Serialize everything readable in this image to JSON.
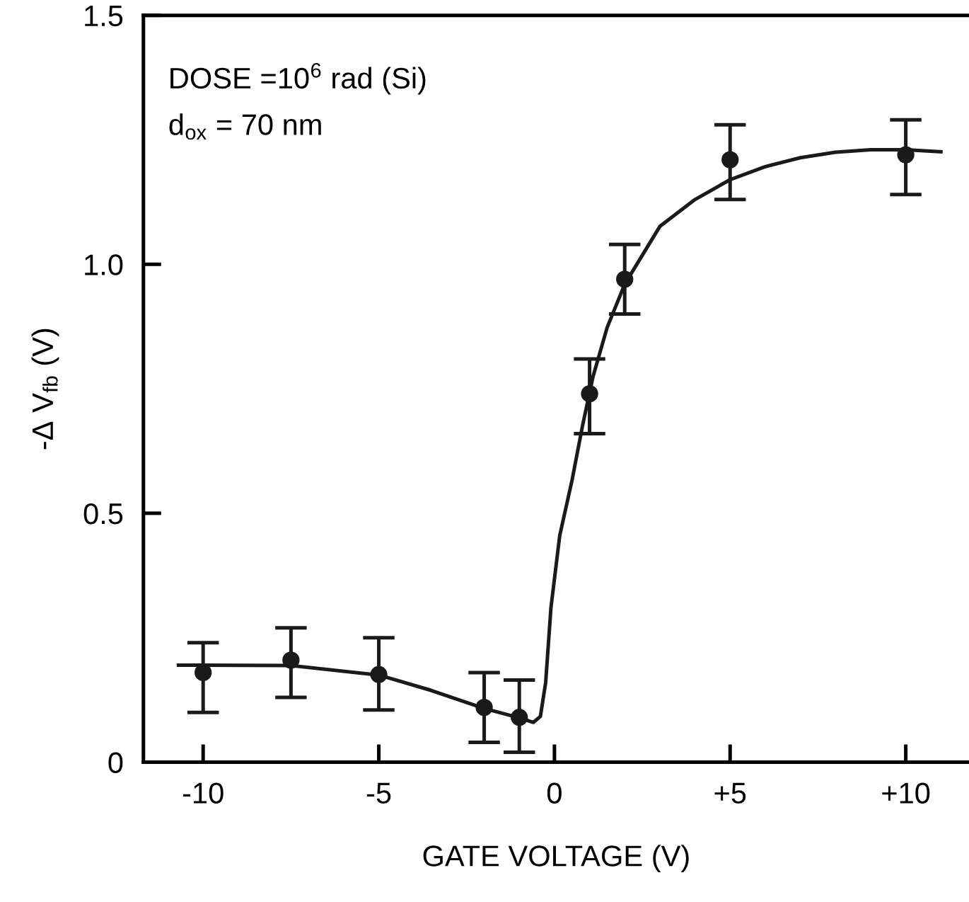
{
  "chart_data": {
    "type": "scatter",
    "xlabel": "GATE VOLTAGE (V)",
    "ylabel": "-Δ V$_{fb}$ (V)",
    "annotations": [
      "DOSE =10$^{6}$ rad (Si)",
      "d$_{ox}$ = 70 nm"
    ],
    "xlim": [
      -11.7,
      11.8
    ],
    "ylim": [
      0,
      1.5
    ],
    "xticks": [
      -10,
      -5,
      0,
      {
        "value": 5,
        "label": "+5"
      },
      {
        "value": 10,
        "label": "+10"
      }
    ],
    "yticks": [
      0,
      {
        "value": 0.5,
        "label": "0.5"
      },
      {
        "value": 1.0,
        "label": "1.0"
      },
      1.5
    ],
    "grid": false,
    "legend": false,
    "series": [
      {
        "color": "#1a1a1a",
        "marker": "circle",
        "x": [
          -10,
          -7.5,
          -5,
          -2,
          -1,
          1,
          2,
          5,
          10
        ],
        "values": [
          0.18,
          0.205,
          0.176,
          0.11,
          0.09,
          0.74,
          0.97,
          1.21,
          1.22
        ],
        "errors": [
          [
            0.1,
            0.24
          ],
          [
            0.13,
            0.27
          ],
          [
            0.105,
            0.25
          ],
          [
            0.04,
            0.18
          ],
          [
            0.02,
            0.165
          ],
          [
            0.66,
            0.81
          ],
          [
            0.9,
            1.04
          ],
          [
            1.13,
            1.28
          ],
          [
            1.14,
            1.29
          ]
        ]
      },
      {
        "type": "line",
        "color": "#1a1a1a",
        "line_style": "solid",
        "x": [
          -10.7,
          -10,
          -7.5,
          -5,
          -3.5,
          -2,
          -1,
          -0.6,
          -0.4,
          -0.25,
          -0.1,
          0.15,
          0.5,
          0.8,
          1.1,
          1.5,
          2,
          3,
          4,
          5,
          6,
          7,
          8,
          9,
          10,
          11
        ],
        "values": [
          0.195,
          0.195,
          0.194,
          0.175,
          0.144,
          0.108,
          0.089,
          0.08,
          0.092,
          0.16,
          0.31,
          0.455,
          0.566,
          0.676,
          0.775,
          0.873,
          0.96,
          1.076,
          1.13,
          1.17,
          1.196,
          1.214,
          1.225,
          1.23,
          1.23,
          1.226
        ]
      }
    ]
  }
}
